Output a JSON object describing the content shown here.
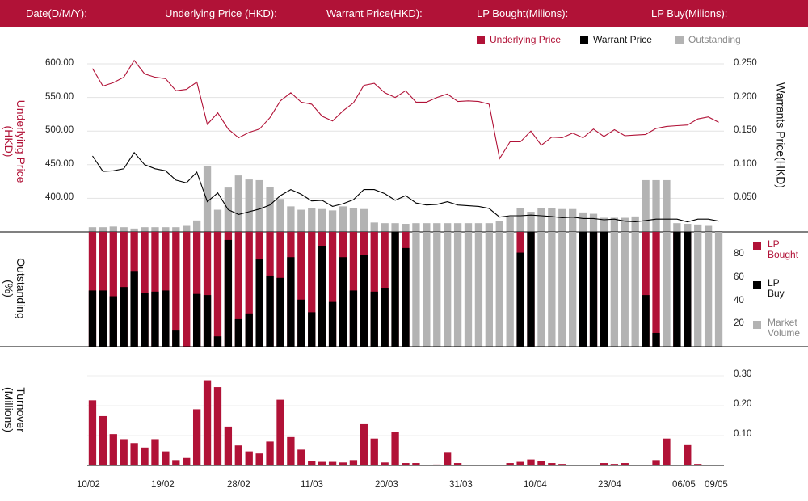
{
  "header": {
    "date_label": "Date(D/M/Y):",
    "underlying_label": "Underlying Price (HKD):",
    "warrant_label": "Warrant  Price(HKD):",
    "lp_bought_label": "LP Bought(Milions):",
    "lp_buy_label": "LP Buy(Milions):"
  },
  "legend": {
    "underlying": "Underlying Price",
    "warrant": "Warrant  Price",
    "outstanding": "Outstanding"
  },
  "legend2": {
    "lp_bought_1": "LP",
    "lp_bought_2": "Bought",
    "lp_buy_1": "LP",
    "lp_buy_2": "Buy",
    "market_volume_1": "Market",
    "market_volume_2": "Volume"
  },
  "axes": {
    "left_title_1": "Underlying Price",
    "left_title_2": "(HKD)",
    "right_title": "Warrants  Price(HKD)",
    "mid_title_1": "Outstanding",
    "mid_title_2": "(%)",
    "bottom_title_1": "Turnover",
    "bottom_title_2": "(Millions)",
    "left_ticks": [
      "600.00",
      "550.00",
      "500.00",
      "450.00",
      "400.00"
    ],
    "right_ticks": [
      "0.250",
      "0.200",
      "0.150",
      "0.100",
      "0.050"
    ],
    "mid_ticks": [
      "80",
      "60",
      "40",
      "20"
    ],
    "bottom_ticks": [
      "0.30",
      "0.20",
      "0.10"
    ],
    "x_ticks": [
      "10/02",
      "19/02",
      "28/02",
      "11/03",
      "20/03",
      "31/03",
      "10/04",
      "23/04",
      "06/05",
      "09/05"
    ]
  },
  "colors": {
    "underlying": "#b11237",
    "warrant": "#000000",
    "outstanding": "#b3b3b3",
    "header_bg": "#b11237"
  },
  "chart_data": [
    {
      "type": "line",
      "title": "Underlying Price / Warrant Price / Outstanding",
      "ylabel": "Underlying Price (HKD)",
      "y2label": "Warrants  Price(HKD)",
      "ylim": [
        350,
        600
      ],
      "y2lim": [
        0,
        0.25
      ],
      "series": [
        {
          "name": "Underlying Price",
          "axis": "left",
          "values": [
            593,
            567,
            572,
            580,
            605,
            585,
            580,
            578,
            560,
            562,
            573,
            510,
            527,
            503,
            490,
            498,
            503,
            520,
            545,
            557,
            543,
            540,
            522,
            515,
            530,
            542,
            568,
            571,
            557,
            550,
            560,
            543,
            543,
            550,
            555,
            544,
            545,
            544,
            540,
            459,
            484,
            484,
            500,
            479,
            491,
            490,
            497,
            490,
            503,
            492,
            502,
            493,
            494,
            495,
            504,
            507,
            508,
            509,
            518,
            521,
            513
          ]
        },
        {
          "name": "Warrant  Price",
          "axis": "right",
          "values": [
            0.113,
            0.09,
            0.091,
            0.094,
            0.118,
            0.1,
            0.094,
            0.091,
            0.077,
            0.073,
            0.089,
            0.045,
            0.058,
            0.033,
            0.026,
            0.03,
            0.034,
            0.04,
            0.054,
            0.063,
            0.056,
            0.046,
            0.047,
            0.038,
            0.042,
            0.048,
            0.063,
            0.063,
            0.057,
            0.047,
            0.054,
            0.043,
            0.04,
            0.041,
            0.045,
            0.04,
            0.039,
            0.038,
            0.035,
            0.022,
            0.024,
            0.024,
            0.025,
            0.024,
            0.023,
            0.021,
            0.022,
            0.02,
            0.02,
            0.018,
            0.019,
            0.016,
            0.015,
            0.017,
            0.019,
            0.019,
            0.019,
            0.015,
            0.019,
            0.019,
            0.016
          ]
        },
        {
          "name": "Outstanding",
          "axis": "left",
          "type": "bar",
          "values": [
            357,
            357,
            358,
            357,
            355,
            357,
            357,
            357,
            357,
            359,
            367,
            448,
            383,
            416,
            434,
            428,
            427,
            417,
            399,
            388,
            383,
            386,
            384,
            382,
            388,
            386,
            384,
            364,
            363,
            363,
            362,
            363,
            363,
            363,
            363,
            363,
            363,
            363,
            363,
            366,
            373,
            385,
            380,
            385,
            385,
            384,
            384,
            379,
            377,
            371,
            371,
            371,
            373,
            427,
            427,
            427,
            363,
            362,
            361,
            359,
            351
          ]
        }
      ]
    },
    {
      "type": "bar",
      "title": "Outstanding (%)",
      "ylabel": "Outstanding (%)",
      "ylim": [
        0,
        100
      ],
      "series": [
        {
          "name": "LP Bought",
          "values": [
            100,
            100,
            100,
            100,
            100,
            100,
            100,
            100,
            100,
            100,
            100,
            100,
            100,
            100,
            100,
            100,
            100,
            100,
            100,
            100,
            100,
            100,
            100,
            100,
            100,
            100,
            100,
            100,
            100,
            100,
            100,
            0,
            0,
            0,
            0,
            0,
            0,
            0,
            0,
            0,
            100,
            100,
            100,
            0,
            0,
            0,
            0,
            100,
            100,
            100,
            0,
            0,
            0,
            100,
            100,
            0,
            100,
            100,
            0,
            0,
            0
          ]
        },
        {
          "name": "LP Buy",
          "values": [
            49,
            49,
            44,
            52,
            66,
            47,
            48,
            49,
            14,
            0,
            46,
            45,
            9,
            93,
            24,
            29,
            76,
            62,
            60,
            78,
            41,
            30,
            88,
            39,
            78,
            49,
            80,
            48,
            51,
            100,
            86,
            0,
            0,
            0,
            0,
            0,
            0,
            0,
            0,
            0,
            0,
            82,
            100,
            0,
            0,
            0,
            0,
            100,
            100,
            100,
            0,
            0,
            0,
            45,
            12,
            0,
            100,
            100,
            0,
            0,
            0
          ]
        },
        {
          "name": "Market Volume",
          "values": [
            0,
            0,
            0,
            0,
            0,
            0,
            0,
            0,
            0,
            0,
            0,
            0,
            0,
            0,
            0,
            0,
            0,
            0,
            0,
            0,
            0,
            0,
            0,
            0,
            0,
            0,
            0,
            0,
            0,
            0,
            0,
            100,
            100,
            100,
            100,
            100,
            100,
            100,
            100,
            100,
            100,
            0,
            0,
            100,
            100,
            100,
            100,
            0,
            0,
            0,
            100,
            100,
            100,
            0,
            0,
            100,
            0,
            0,
            100,
            100,
            100
          ]
        }
      ]
    },
    {
      "type": "bar",
      "title": "Turnover (Millions)",
      "ylabel": "Turnover (Millions)",
      "ylim": [
        0,
        0.3
      ],
      "series": [
        {
          "name": "Turnover",
          "values": [
            0.218,
            0.165,
            0.105,
            0.088,
            0.075,
            0.06,
            0.088,
            0.047,
            0.018,
            0.025,
            0.188,
            0.285,
            0.262,
            0.13,
            0.067,
            0.047,
            0.04,
            0.08,
            0.22,
            0.095,
            0.053,
            0.015,
            0.012,
            0.012,
            0.01,
            0.018,
            0.138,
            0.09,
            0.01,
            0.113,
            0.008,
            0.008,
            0,
            0.003,
            0.045,
            0.008,
            0,
            0,
            0,
            0,
            0.008,
            0.012,
            0.02,
            0.015,
            0.008,
            0.005,
            0,
            0,
            0,
            0.008,
            0.005,
            0.008,
            0,
            0,
            0.018,
            0.09,
            0,
            0.068,
            0.005,
            0,
            0
          ]
        }
      ]
    }
  ]
}
